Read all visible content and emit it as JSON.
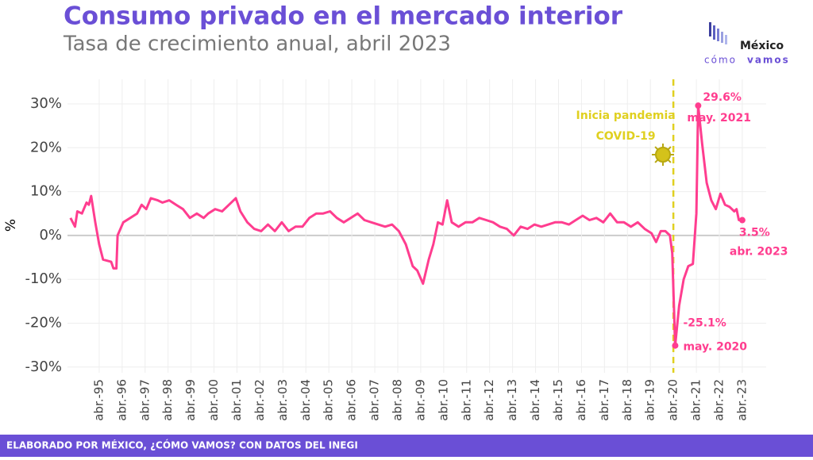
{
  "chart_data": {
    "type": "line",
    "title": "Consumo privado en el mercado interior",
    "subtitle": "Tasa de crecimiento anual, abril 2023",
    "y_label": "%",
    "source": "ELABORADO POR MÉXICO, ¿CÓMO VAMOS? CON DATOS DEL INEGI",
    "logo": [
      "México",
      "cómo",
      "vamos"
    ],
    "color": "#ff3d8f",
    "grid": true,
    "xlim": [
      1993.87,
      2024.29
    ],
    "ylim": [
      -31.3,
      35.6
    ],
    "yticks": [
      {
        "value": -30,
        "label": "-30%"
      },
      {
        "value": -20,
        "label": "-20%"
      },
      {
        "value": -10,
        "label": "-10%"
      },
      {
        "value": 0,
        "label": "0%"
      },
      {
        "value": 10,
        "label": "10%"
      },
      {
        "value": 20,
        "label": "20%"
      },
      {
        "value": 30,
        "label": "30%"
      }
    ],
    "xticks": [
      {
        "value": 1995.25,
        "label": "abr.-95"
      },
      {
        "value": 1996.25,
        "label": "abr.-96"
      },
      {
        "value": 1997.25,
        "label": "abr.-97"
      },
      {
        "value": 1998.25,
        "label": "abr.-98"
      },
      {
        "value": 1999.25,
        "label": "abr.-99"
      },
      {
        "value": 2000.25,
        "label": "abr.-00"
      },
      {
        "value": 2001.25,
        "label": "abr.-01"
      },
      {
        "value": 2002.25,
        "label": "abr.-02"
      },
      {
        "value": 2003.25,
        "label": "abr.-03"
      },
      {
        "value": 2004.25,
        "label": "abr.-04"
      },
      {
        "value": 2005.25,
        "label": "abr.-05"
      },
      {
        "value": 2006.25,
        "label": "abr.-06"
      },
      {
        "value": 2007.25,
        "label": "abr.-07"
      },
      {
        "value": 2008.25,
        "label": "abr.-08"
      },
      {
        "value": 2009.25,
        "label": "abr.-09"
      },
      {
        "value": 2010.25,
        "label": "abr.-10"
      },
      {
        "value": 2011.25,
        "label": "abr.-11"
      },
      {
        "value": 2012.25,
        "label": "abr.-12"
      },
      {
        "value": 2013.25,
        "label": "abr.-13"
      },
      {
        "value": 2014.25,
        "label": "abr.-14"
      },
      {
        "value": 2015.25,
        "label": "abr.-15"
      },
      {
        "value": 2016.25,
        "label": "abr.-16"
      },
      {
        "value": 2017.25,
        "label": "abr.-17"
      },
      {
        "value": 2018.25,
        "label": "abr.-18"
      },
      {
        "value": 2019.25,
        "label": "abr.-19"
      },
      {
        "value": 2020.25,
        "label": "abr.-20"
      },
      {
        "value": 2021.25,
        "label": "abr.-21"
      },
      {
        "value": 2022.25,
        "label": "abr.-22"
      },
      {
        "value": 2023.25,
        "label": "abr.-23"
      }
    ],
    "x": [
      1994.0,
      1994.2,
      1994.3,
      1994.5,
      1994.7,
      1994.8,
      1994.9,
      1995.08,
      1995.25,
      1995.42,
      1995.77,
      1995.87,
      1996.0,
      1996.05,
      1996.3,
      1996.6,
      1996.9,
      1997.1,
      1997.3,
      1997.5,
      1997.8,
      1998.0,
      1998.3,
      1998.6,
      1998.9,
      1999.2,
      1999.5,
      1999.8,
      2000.0,
      2000.3,
      2000.6,
      2000.9,
      2001.2,
      2001.4,
      2001.7,
      2002.0,
      2002.3,
      2002.6,
      2002.9,
      2003.2,
      2003.5,
      2003.8,
      2004.1,
      2004.4,
      2004.7,
      2005.0,
      2005.3,
      2005.6,
      2005.9,
      2006.2,
      2006.5,
      2006.8,
      2007.1,
      2007.4,
      2007.7,
      2008.0,
      2008.3,
      2008.6,
      2008.9,
      2009.1,
      2009.35,
      2009.6,
      2009.8,
      2010.0,
      2010.2,
      2010.4,
      2010.6,
      2010.9,
      2011.2,
      2011.5,
      2011.8,
      2012.1,
      2012.4,
      2012.7,
      2013.0,
      2013.3,
      2013.6,
      2013.9,
      2014.2,
      2014.5,
      2014.8,
      2015.1,
      2015.4,
      2015.7,
      2016.0,
      2016.3,
      2016.6,
      2016.9,
      2017.2,
      2017.5,
      2017.8,
      2018.1,
      2018.4,
      2018.7,
      2019.0,
      2019.3,
      2019.5,
      2019.7,
      2019.9,
      2020.1,
      2020.2,
      2020.33,
      2020.5,
      2020.7,
      2020.9,
      2021.1,
      2021.25,
      2021.33,
      2021.5,
      2021.7,
      2021.9,
      2022.1,
      2022.3,
      2022.5,
      2022.7,
      2022.9,
      2023.0,
      2023.1,
      2023.25
    ],
    "values": [
      4,
      2,
      5.5,
      5,
      7.5,
      7,
      9,
      3,
      -2,
      -5.5,
      -6,
      -7.5,
      -7.5,
      0,
      3,
      4,
      5,
      7,
      6,
      8.5,
      8,
      7.5,
      8,
      7,
      6,
      4,
      5,
      4,
      5,
      6,
      5.5,
      7,
      8.5,
      5.5,
      3,
      1.5,
      1,
      2.5,
      1,
      3,
      1,
      2,
      2,
      4,
      5,
      5,
      5.5,
      4,
      3,
      4,
      5,
      3.5,
      3,
      2.5,
      2,
      2.5,
      1,
      -2,
      -7,
      -8,
      -11,
      -5.5,
      -2,
      3,
      2.5,
      8,
      3,
      2,
      3,
      3,
      4,
      3.5,
      3,
      2,
      1.5,
      0,
      2,
      1.5,
      2.5,
      2,
      2.5,
      3,
      3,
      2.5,
      3.5,
      4.5,
      3.5,
      4,
      3,
      5,
      3,
      3,
      2,
      3,
      1.5,
      0.5,
      -1.5,
      1,
      1,
      0,
      -4,
      -25.1,
      -16,
      -10,
      -7,
      -6.5,
      5,
      29.6,
      21,
      12,
      8,
      6,
      9.5,
      7,
      6.5,
      5.5,
      6,
      3.5,
      3.5
    ],
    "event": {
      "x": 2020.25,
      "label": [
        "Inicia pandemia",
        "COVID-19"
      ],
      "color": "#e0d020"
    },
    "annotations": [
      {
        "x": 2021.33,
        "value": 29.6,
        "label": "29.6%",
        "date": "may. 2021"
      },
      {
        "x": 2020.33,
        "value": -25.1,
        "label": "-25.1%",
        "date": "may. 2020"
      },
      {
        "x": 2023.25,
        "value": 3.5,
        "label": "3.5%",
        "date": "abr. 2023"
      }
    ]
  }
}
